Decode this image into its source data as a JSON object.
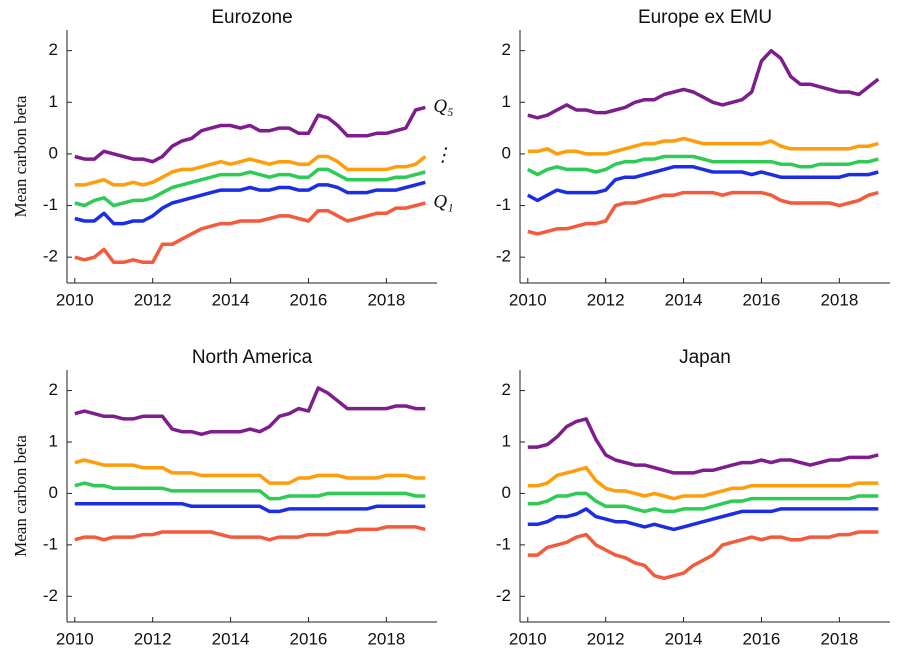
{
  "chart_data": [
    {
      "type": "line",
      "title": "Eurozone",
      "ylabel": "Mean carbon beta",
      "annotations": [
        "Q₅",
        "⋮",
        "Q₁"
      ],
      "x": [
        2010,
        2010.25,
        2010.5,
        2010.75,
        2011,
        2011.25,
        2011.5,
        2011.75,
        2012,
        2012.25,
        2012.5,
        2012.75,
        2013,
        2013.25,
        2013.5,
        2013.75,
        2014,
        2014.25,
        2014.5,
        2014.75,
        2015,
        2015.25,
        2015.5,
        2015.75,
        2016,
        2016.25,
        2016.5,
        2016.75,
        2017,
        2017.25,
        2017.5,
        2017.75,
        2018,
        2018.25,
        2018.5,
        2018.75,
        2019
      ],
      "xlim": [
        2009.8,
        2019.3
      ],
      "xticks": [
        2010,
        2012,
        2014,
        2016,
        2018
      ],
      "ylim": [
        -2.5,
        2.4
      ],
      "yticks": [
        -2,
        -1,
        0,
        1,
        2
      ],
      "series": [
        {
          "color": "#7e1e8c",
          "values": [
            -0.05,
            -0.1,
            -0.1,
            0.05,
            0,
            -0.05,
            -0.1,
            -0.1,
            -0.15,
            -0.05,
            0.15,
            0.25,
            0.3,
            0.45,
            0.5,
            0.55,
            0.55,
            0.5,
            0.55,
            0.45,
            0.45,
            0.5,
            0.5,
            0.4,
            0.4,
            0.75,
            0.7,
            0.55,
            0.35,
            0.35,
            0.35,
            0.4,
            0.4,
            0.45,
            0.5,
            0.85,
            0.9
          ]
        },
        {
          "color": "#ff9d0a",
          "values": [
            -0.6,
            -0.6,
            -0.55,
            -0.5,
            -0.6,
            -0.6,
            -0.55,
            -0.6,
            -0.55,
            -0.45,
            -0.35,
            -0.3,
            -0.3,
            -0.25,
            -0.2,
            -0.15,
            -0.2,
            -0.15,
            -0.1,
            -0.15,
            -0.2,
            -0.15,
            -0.15,
            -0.2,
            -0.2,
            -0.05,
            -0.05,
            -0.15,
            -0.3,
            -0.3,
            -0.3,
            -0.3,
            -0.3,
            -0.25,
            -0.25,
            -0.2,
            -0.05
          ]
        },
        {
          "color": "#2ecc55",
          "values": [
            -0.95,
            -1.0,
            -0.9,
            -0.85,
            -1.0,
            -0.95,
            -0.9,
            -0.9,
            -0.85,
            -0.75,
            -0.65,
            -0.6,
            -0.55,
            -0.5,
            -0.45,
            -0.4,
            -0.4,
            -0.4,
            -0.35,
            -0.4,
            -0.45,
            -0.4,
            -0.4,
            -0.45,
            -0.45,
            -0.3,
            -0.3,
            -0.4,
            -0.5,
            -0.5,
            -0.5,
            -0.5,
            -0.5,
            -0.45,
            -0.45,
            -0.4,
            -0.35
          ]
        },
        {
          "color": "#1b2ee6",
          "values": [
            -1.25,
            -1.3,
            -1.3,
            -1.15,
            -1.35,
            -1.35,
            -1.3,
            -1.3,
            -1.2,
            -1.05,
            -0.95,
            -0.9,
            -0.85,
            -0.8,
            -0.75,
            -0.7,
            -0.7,
            -0.7,
            -0.65,
            -0.7,
            -0.7,
            -0.65,
            -0.65,
            -0.7,
            -0.7,
            -0.6,
            -0.6,
            -0.65,
            -0.75,
            -0.75,
            -0.75,
            -0.7,
            -0.7,
            -0.7,
            -0.65,
            -0.6,
            -0.55
          ]
        },
        {
          "color": "#f45a3c",
          "values": [
            -2.0,
            -2.05,
            -2.0,
            -1.85,
            -2.1,
            -2.1,
            -2.05,
            -2.1,
            -2.1,
            -1.75,
            -1.75,
            -1.65,
            -1.55,
            -1.45,
            -1.4,
            -1.35,
            -1.35,
            -1.3,
            -1.3,
            -1.3,
            -1.25,
            -1.2,
            -1.2,
            -1.25,
            -1.3,
            -1.1,
            -1.1,
            -1.2,
            -1.3,
            -1.25,
            -1.2,
            -1.15,
            -1.15,
            -1.05,
            -1.05,
            -1.0,
            -0.95
          ]
        }
      ]
    },
    {
      "type": "line",
      "title": "Europe ex EMU",
      "x": [
        2010,
        2010.25,
        2010.5,
        2010.75,
        2011,
        2011.25,
        2011.5,
        2011.75,
        2012,
        2012.25,
        2012.5,
        2012.75,
        2013,
        2013.25,
        2013.5,
        2013.75,
        2014,
        2014.25,
        2014.5,
        2014.75,
        2015,
        2015.25,
        2015.5,
        2015.75,
        2016,
        2016.25,
        2016.5,
        2016.75,
        2017,
        2017.25,
        2017.5,
        2017.75,
        2018,
        2018.25,
        2018.5,
        2018.75,
        2019
      ],
      "xlim": [
        2009.8,
        2019.3
      ],
      "xticks": [
        2010,
        2012,
        2014,
        2016,
        2018
      ],
      "ylim": [
        -2.5,
        2.4
      ],
      "yticks": [
        -2,
        -1,
        0,
        1,
        2
      ],
      "series": [
        {
          "color": "#7e1e8c",
          "values": [
            0.75,
            0.7,
            0.75,
            0.85,
            0.95,
            0.85,
            0.85,
            0.8,
            0.8,
            0.85,
            0.9,
            1.0,
            1.05,
            1.05,
            1.15,
            1.2,
            1.25,
            1.2,
            1.1,
            1.0,
            0.95,
            1.0,
            1.05,
            1.2,
            1.8,
            2.0,
            1.85,
            1.5,
            1.35,
            1.35,
            1.3,
            1.25,
            1.2,
            1.2,
            1.15,
            1.3,
            1.45
          ]
        },
        {
          "color": "#ff9d0a",
          "values": [
            0.05,
            0.05,
            0.1,
            0.0,
            0.05,
            0.05,
            0.0,
            0.0,
            0.0,
            0.05,
            0.1,
            0.15,
            0.2,
            0.2,
            0.25,
            0.25,
            0.3,
            0.25,
            0.2,
            0.2,
            0.2,
            0.2,
            0.2,
            0.2,
            0.2,
            0.25,
            0.15,
            0.1,
            0.1,
            0.1,
            0.1,
            0.1,
            0.1,
            0.1,
            0.15,
            0.15,
            0.2
          ]
        },
        {
          "color": "#2ecc55",
          "values": [
            -0.3,
            -0.4,
            -0.3,
            -0.25,
            -0.3,
            -0.3,
            -0.3,
            -0.35,
            -0.3,
            -0.2,
            -0.15,
            -0.15,
            -0.1,
            -0.1,
            -0.05,
            -0.05,
            -0.05,
            -0.05,
            -0.1,
            -0.15,
            -0.15,
            -0.15,
            -0.15,
            -0.15,
            -0.15,
            -0.15,
            -0.2,
            -0.2,
            -0.25,
            -0.25,
            -0.2,
            -0.2,
            -0.2,
            -0.2,
            -0.15,
            -0.15,
            -0.1
          ]
        },
        {
          "color": "#1b2ee6",
          "values": [
            -0.8,
            -0.9,
            -0.8,
            -0.7,
            -0.75,
            -0.75,
            -0.75,
            -0.75,
            -0.7,
            -0.5,
            -0.45,
            -0.45,
            -0.4,
            -0.35,
            -0.3,
            -0.25,
            -0.25,
            -0.25,
            -0.3,
            -0.35,
            -0.35,
            -0.35,
            -0.35,
            -0.4,
            -0.35,
            -0.4,
            -0.45,
            -0.45,
            -0.45,
            -0.45,
            -0.45,
            -0.45,
            -0.45,
            -0.4,
            -0.4,
            -0.4,
            -0.35
          ]
        },
        {
          "color": "#f45a3c",
          "values": [
            -1.5,
            -1.55,
            -1.5,
            -1.45,
            -1.45,
            -1.4,
            -1.35,
            -1.35,
            -1.3,
            -1.0,
            -0.95,
            -0.95,
            -0.9,
            -0.85,
            -0.8,
            -0.8,
            -0.75,
            -0.75,
            -0.75,
            -0.75,
            -0.8,
            -0.75,
            -0.75,
            -0.75,
            -0.75,
            -0.8,
            -0.9,
            -0.95,
            -0.95,
            -0.95,
            -0.95,
            -0.95,
            -1.0,
            -0.95,
            -0.9,
            -0.8,
            -0.75
          ]
        }
      ]
    },
    {
      "type": "line",
      "title": "North America",
      "ylabel": "Mean carbon beta",
      "x": [
        2010,
        2010.25,
        2010.5,
        2010.75,
        2011,
        2011.25,
        2011.5,
        2011.75,
        2012,
        2012.25,
        2012.5,
        2012.75,
        2013,
        2013.25,
        2013.5,
        2013.75,
        2014,
        2014.25,
        2014.5,
        2014.75,
        2015,
        2015.25,
        2015.5,
        2015.75,
        2016,
        2016.25,
        2016.5,
        2016.75,
        2017,
        2017.25,
        2017.5,
        2017.75,
        2018,
        2018.25,
        2018.5,
        2018.75,
        2019
      ],
      "xlim": [
        2009.8,
        2019.3
      ],
      "xticks": [
        2010,
        2012,
        2014,
        2016,
        2018
      ],
      "ylim": [
        -2.5,
        2.4
      ],
      "yticks": [
        -2,
        -1,
        0,
        1,
        2
      ],
      "series": [
        {
          "color": "#7e1e8c",
          "values": [
            1.55,
            1.6,
            1.55,
            1.5,
            1.5,
            1.45,
            1.45,
            1.5,
            1.5,
            1.5,
            1.25,
            1.2,
            1.2,
            1.15,
            1.2,
            1.2,
            1.2,
            1.2,
            1.25,
            1.2,
            1.3,
            1.5,
            1.55,
            1.65,
            1.6,
            2.05,
            1.95,
            1.8,
            1.65,
            1.65,
            1.65,
            1.65,
            1.65,
            1.7,
            1.7,
            1.65,
            1.65
          ]
        },
        {
          "color": "#ff9d0a",
          "values": [
            0.6,
            0.65,
            0.6,
            0.55,
            0.55,
            0.55,
            0.55,
            0.5,
            0.5,
            0.5,
            0.4,
            0.4,
            0.4,
            0.35,
            0.35,
            0.35,
            0.35,
            0.35,
            0.35,
            0.35,
            0.2,
            0.2,
            0.2,
            0.3,
            0.3,
            0.35,
            0.35,
            0.35,
            0.3,
            0.3,
            0.3,
            0.3,
            0.35,
            0.35,
            0.35,
            0.3,
            0.3
          ]
        },
        {
          "color": "#2ecc55",
          "values": [
            0.15,
            0.2,
            0.15,
            0.15,
            0.1,
            0.1,
            0.1,
            0.1,
            0.1,
            0.1,
            0.05,
            0.05,
            0.05,
            0.05,
            0.05,
            0.05,
            0.05,
            0.05,
            0.05,
            0.05,
            -0.1,
            -0.1,
            -0.05,
            -0.05,
            -0.05,
            -0.05,
            0.0,
            0.0,
            0.0,
            0.0,
            0.0,
            0.0,
            0.0,
            0.0,
            0.0,
            -0.05,
            -0.05
          ]
        },
        {
          "color": "#1b2ee6",
          "values": [
            -0.2,
            -0.2,
            -0.2,
            -0.2,
            -0.2,
            -0.2,
            -0.2,
            -0.2,
            -0.2,
            -0.2,
            -0.2,
            -0.2,
            -0.25,
            -0.25,
            -0.25,
            -0.25,
            -0.25,
            -0.25,
            -0.25,
            -0.25,
            -0.35,
            -0.35,
            -0.3,
            -0.3,
            -0.3,
            -0.3,
            -0.3,
            -0.3,
            -0.3,
            -0.3,
            -0.3,
            -0.25,
            -0.25,
            -0.25,
            -0.25,
            -0.25,
            -0.25
          ]
        },
        {
          "color": "#f45a3c",
          "values": [
            -0.9,
            -0.85,
            -0.85,
            -0.9,
            -0.85,
            -0.85,
            -0.85,
            -0.8,
            -0.8,
            -0.75,
            -0.75,
            -0.75,
            -0.75,
            -0.75,
            -0.75,
            -0.8,
            -0.85,
            -0.85,
            -0.85,
            -0.85,
            -0.9,
            -0.85,
            -0.85,
            -0.85,
            -0.8,
            -0.8,
            -0.8,
            -0.75,
            -0.75,
            -0.7,
            -0.7,
            -0.7,
            -0.65,
            -0.65,
            -0.65,
            -0.65,
            -0.7
          ]
        }
      ]
    },
    {
      "type": "line",
      "title": "Japan",
      "x": [
        2010,
        2010.25,
        2010.5,
        2010.75,
        2011,
        2011.25,
        2011.5,
        2011.75,
        2012,
        2012.25,
        2012.5,
        2012.75,
        2013,
        2013.25,
        2013.5,
        2013.75,
        2014,
        2014.25,
        2014.5,
        2014.75,
        2015,
        2015.25,
        2015.5,
        2015.75,
        2016,
        2016.25,
        2016.5,
        2016.75,
        2017,
        2017.25,
        2017.5,
        2017.75,
        2018,
        2018.25,
        2018.5,
        2018.75,
        2019
      ],
      "xlim": [
        2009.8,
        2019.3
      ],
      "xticks": [
        2010,
        2012,
        2014,
        2016,
        2018
      ],
      "ylim": [
        -2.5,
        2.4
      ],
      "yticks": [
        -2,
        -1,
        0,
        1,
        2
      ],
      "series": [
        {
          "color": "#7e1e8c",
          "values": [
            0.9,
            0.9,
            0.95,
            1.1,
            1.3,
            1.4,
            1.45,
            1.05,
            0.75,
            0.65,
            0.6,
            0.55,
            0.55,
            0.5,
            0.45,
            0.4,
            0.4,
            0.4,
            0.45,
            0.45,
            0.5,
            0.55,
            0.6,
            0.6,
            0.65,
            0.6,
            0.65,
            0.65,
            0.6,
            0.55,
            0.6,
            0.65,
            0.65,
            0.7,
            0.7,
            0.7,
            0.75
          ]
        },
        {
          "color": "#ff9d0a",
          "values": [
            0.15,
            0.15,
            0.2,
            0.35,
            0.4,
            0.45,
            0.5,
            0.25,
            0.1,
            0.05,
            0.05,
            0.0,
            -0.05,
            0.0,
            -0.05,
            -0.1,
            -0.05,
            -0.05,
            -0.05,
            0.0,
            0.05,
            0.1,
            0.1,
            0.15,
            0.15,
            0.15,
            0.15,
            0.15,
            0.15,
            0.15,
            0.15,
            0.15,
            0.15,
            0.15,
            0.2,
            0.2,
            0.2
          ]
        },
        {
          "color": "#2ecc55",
          "values": [
            -0.2,
            -0.2,
            -0.15,
            -0.05,
            -0.05,
            0.0,
            0.0,
            -0.15,
            -0.25,
            -0.25,
            -0.25,
            -0.3,
            -0.35,
            -0.3,
            -0.35,
            -0.35,
            -0.3,
            -0.3,
            -0.3,
            -0.25,
            -0.2,
            -0.15,
            -0.15,
            -0.1,
            -0.1,
            -0.1,
            -0.1,
            -0.1,
            -0.1,
            -0.1,
            -0.1,
            -0.1,
            -0.1,
            -0.1,
            -0.05,
            -0.05,
            -0.05
          ]
        },
        {
          "color": "#1b2ee6",
          "values": [
            -0.6,
            -0.6,
            -0.55,
            -0.45,
            -0.45,
            -0.4,
            -0.3,
            -0.45,
            -0.5,
            -0.55,
            -0.55,
            -0.6,
            -0.65,
            -0.6,
            -0.65,
            -0.7,
            -0.65,
            -0.6,
            -0.55,
            -0.5,
            -0.45,
            -0.4,
            -0.35,
            -0.35,
            -0.35,
            -0.35,
            -0.3,
            -0.3,
            -0.3,
            -0.3,
            -0.3,
            -0.3,
            -0.3,
            -0.3,
            -0.3,
            -0.3,
            -0.3
          ]
        },
        {
          "color": "#f45a3c",
          "values": [
            -1.2,
            -1.2,
            -1.05,
            -1.0,
            -0.95,
            -0.85,
            -0.8,
            -1.0,
            -1.1,
            -1.2,
            -1.25,
            -1.35,
            -1.4,
            -1.6,
            -1.65,
            -1.6,
            -1.55,
            -1.4,
            -1.3,
            -1.2,
            -1.0,
            -0.95,
            -0.9,
            -0.85,
            -0.9,
            -0.85,
            -0.85,
            -0.9,
            -0.9,
            -0.85,
            -0.85,
            -0.85,
            -0.8,
            -0.8,
            -0.75,
            -0.75,
            -0.75
          ]
        }
      ]
    }
  ]
}
